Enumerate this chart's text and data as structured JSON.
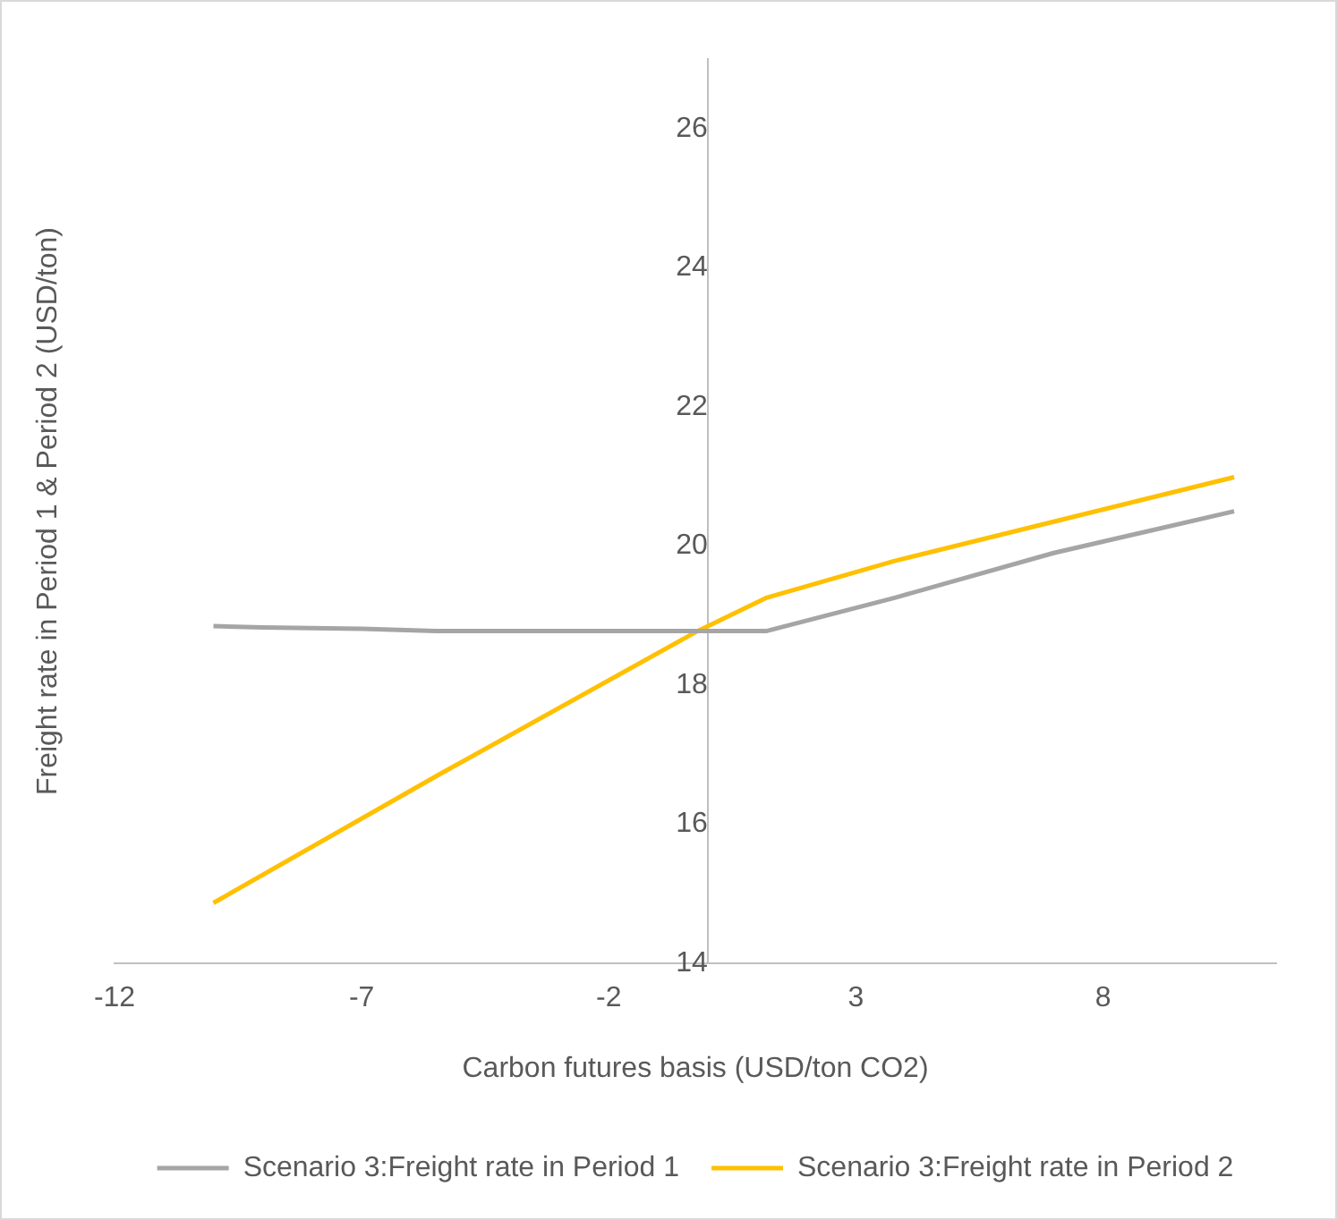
{
  "chart_data": {
    "type": "line",
    "xlabel": "Carbon futures basis (USD/ton CO2)",
    "ylabel": "Freight rate in Period 1 & Period 2 (USD/ton)",
    "xlim": [
      -12,
      11.5
    ],
    "xticks": [
      -12,
      -7,
      -2,
      3,
      8
    ],
    "ylim": [
      14,
      27
    ],
    "yticks": [
      14,
      16,
      18,
      20,
      22,
      24,
      26
    ],
    "grid": false,
    "legend": "bottom",
    "marker": "none",
    "series": [
      {
        "name": "Scenario 3:Freight rate in Period 1",
        "color": "#a5a5a5",
        "x": [
          -10,
          -9,
          -7,
          -5.5,
          -1,
          1.2,
          3.8,
          7,
          10.65
        ],
        "values": [
          18.85,
          18.83,
          18.81,
          18.78,
          18.78,
          18.78,
          19.26,
          19.9,
          20.5
        ]
      },
      {
        "name": "Scenario 3:Freight rate in Period 2",
        "color": "#ffc000",
        "x": [
          -10,
          -5.5,
          -0.2,
          1.2,
          3.8,
          7,
          10.65
        ],
        "values": [
          14.87,
          16.69,
          18.78,
          19.26,
          19.79,
          20.35,
          20.99
        ]
      }
    ]
  }
}
